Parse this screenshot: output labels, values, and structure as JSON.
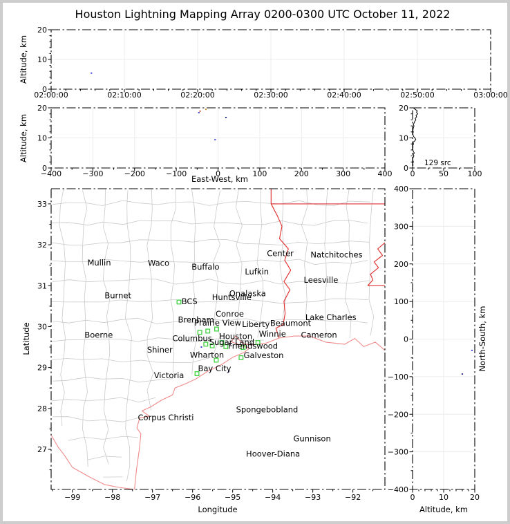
{
  "title": "Houston Lightning Mapping Array 0200-0300 UTC October 11, 2022",
  "colors": {
    "frame": "#000000",
    "grid": "#ececec",
    "county_line": "#c9c9c9",
    "state_border": "#e23030",
    "coastline": "#f08a8a",
    "station_marker": "#3fd33f",
    "city_label": "#1c1c1c",
    "city_highlight": "#f5a04a",
    "city_network": "#a03434",
    "platform_label": "#2828cc",
    "histogram_line": "#000000"
  },
  "chart_data": [
    {
      "type": "scatter",
      "panel": "time_altitude",
      "ylabel": "Altitude, km",
      "xticks": [
        "02:00:00",
        "02:10:00",
        "02:20:00",
        "02:30:00",
        "02:40:00",
        "02:50:00",
        "03:00:00"
      ],
      "yticks": [
        0,
        10,
        20
      ],
      "xlim": [
        "02:00:00",
        "03:00:00"
      ],
      "ylim": [
        0,
        20
      ],
      "points": [
        {
          "time": "02:05:30",
          "altitude_km": 5.4,
          "color": "#3a3ad6"
        }
      ]
    },
    {
      "type": "scatter",
      "panel": "eastwest_altitude",
      "xlabel": "East-West, km",
      "ylabel": "Altitude, km",
      "xticks": [
        -400,
        -300,
        -200,
        -100,
        0,
        100,
        200,
        300,
        400
      ],
      "yticks": [
        0,
        10,
        20
      ],
      "xlim": [
        -400,
        400
      ],
      "ylim": [
        0,
        20
      ],
      "points": [
        {
          "x_km": -46,
          "altitude_km": 18.4,
          "color": "#3a3ad6"
        },
        {
          "x_km": -43,
          "altitude_km": 18.9,
          "color": "#d05030"
        },
        {
          "x_km": -29,
          "altitude_km": 19.5,
          "color": "#d08a30"
        },
        {
          "x_km": 19,
          "altitude_km": 16.8,
          "color": "#28288c"
        },
        {
          "x_km": -7,
          "altitude_km": 9.4,
          "color": "#3a3ad6"
        }
      ]
    },
    {
      "type": "line",
      "panel": "altitude_source_histogram",
      "annotation": "129 src",
      "xticks": [
        0,
        50,
        100
      ],
      "yticks": [
        0,
        10,
        20
      ],
      "xlim": [
        0,
        100
      ],
      "ylim": [
        0,
        20
      ],
      "series": [
        {
          "name": "source count by altitude",
          "points_alt_count": [
            [
              0,
              0
            ],
            [
              0.5,
              0.2
            ],
            [
              1,
              0.9
            ],
            [
              1.5,
              0.3
            ],
            [
              2,
              1.3
            ],
            [
              2.5,
              0.5
            ],
            [
              3,
              0.2
            ],
            [
              3.5,
              1.0
            ],
            [
              4,
              2.2
            ],
            [
              4.5,
              1.0
            ],
            [
              5,
              2.9
            ],
            [
              5.5,
              1.2
            ],
            [
              6,
              0.6
            ],
            [
              6.5,
              0.3
            ],
            [
              7,
              0.8
            ],
            [
              7.5,
              0.4
            ],
            [
              8,
              1.5
            ],
            [
              8.5,
              0.7
            ],
            [
              9,
              3.6
            ],
            [
              9.5,
              5.2
            ],
            [
              10,
              3.8
            ],
            [
              10.5,
              1.6
            ],
            [
              11,
              0.8
            ],
            [
              11.5,
              0.5
            ],
            [
              12,
              1.2
            ],
            [
              12.5,
              0.6
            ],
            [
              13,
              0.9
            ],
            [
              13.5,
              1.5
            ],
            [
              14,
              2.3
            ],
            [
              14.5,
              1.1
            ],
            [
              15,
              2.7
            ],
            [
              15.5,
              3.5
            ],
            [
              16,
              5.3
            ],
            [
              16.5,
              4.3
            ],
            [
              17,
              6.6
            ],
            [
              17.5,
              5.6
            ],
            [
              18,
              8.3
            ],
            [
              18.5,
              6.3
            ],
            [
              19,
              7.5
            ],
            [
              19.5,
              4.3
            ],
            [
              20,
              1.2
            ]
          ]
        }
      ]
    },
    {
      "type": "scatter",
      "panel": "plan_view_map",
      "xlabel": "Longitude",
      "ylabel": "Latitude",
      "xticks": [
        -99,
        -98,
        -97,
        -96,
        -95,
        -94,
        -93,
        -92
      ],
      "yticks": [
        27,
        28,
        29,
        30,
        31,
        32,
        33
      ],
      "xlim": [
        -99.53,
        -91.2
      ],
      "ylim": [
        26.02,
        33.37
      ],
      "points": [
        {
          "lon": -95.78,
          "lat": 29.5,
          "color": "#3a3ad6"
        },
        {
          "lon": -95.1,
          "lat": 28.9,
          "color": "#28288c"
        }
      ]
    },
    {
      "type": "scatter",
      "panel": "northsouth_altitude",
      "xlabel": "Altitude, km",
      "ylabel": "North-South, km",
      "xticks": [
        0,
        10,
        20
      ],
      "yticks": [
        400,
        300,
        200,
        100,
        0,
        -100,
        -200,
        -300,
        -400
      ],
      "xlim": [
        0,
        20
      ],
      "ylim": [
        -400,
        400
      ],
      "points": [
        {
          "altitude_km": 19.1,
          "y_km": -30,
          "color": "#3a3ad6"
        },
        {
          "altitude_km": 16.0,
          "y_km": -93,
          "color": "#28288c"
        }
      ]
    }
  ],
  "map_data": {
    "region": {
      "lon_min": -99.53,
      "lon_max": -91.2,
      "lat_min": 26.02,
      "lat_max": 33.37
    },
    "cities": [
      {
        "name": "Mullin",
        "lon": -98.66,
        "lat": 31.56,
        "role": "highlight"
      },
      {
        "name": "Waco",
        "lon": -97.15,
        "lat": 31.55,
        "role": "default"
      },
      {
        "name": "Buffalo",
        "lon": -96.06,
        "lat": 31.46,
        "role": "default"
      },
      {
        "name": "Lufkin",
        "lon": -94.73,
        "lat": 31.34,
        "role": "default"
      },
      {
        "name": "Center",
        "lon": -94.18,
        "lat": 31.79,
        "role": "default"
      },
      {
        "name": "Natchitoches",
        "lon": -93.09,
        "lat": 31.76,
        "role": "default"
      },
      {
        "name": "Leesville",
        "lon": -93.26,
        "lat": 31.14,
        "role": "default"
      },
      {
        "name": "Burnet",
        "lon": -98.23,
        "lat": 30.76,
        "role": "default"
      },
      {
        "name": "Onalaska",
        "lon": -95.12,
        "lat": 30.81,
        "role": "default"
      },
      {
        "name": "Huntsville",
        "lon": -95.55,
        "lat": 30.72,
        "role": "default"
      },
      {
        "name": "BCS",
        "lon": -96.31,
        "lat": 30.62,
        "role": "network"
      },
      {
        "name": "Conroe",
        "lon": -95.46,
        "lat": 30.31,
        "role": "default"
      },
      {
        "name": "Brenham",
        "lon": -96.4,
        "lat": 30.17,
        "role": "default"
      },
      {
        "name": "Prairie View",
        "lon": -95.99,
        "lat": 30.09,
        "role": "default"
      },
      {
        "name": "Liberty",
        "lon": -94.8,
        "lat": 30.06,
        "role": "default"
      },
      {
        "name": "Beaumont",
        "lon": -94.1,
        "lat": 30.08,
        "role": "default"
      },
      {
        "name": "Lake Charles",
        "lon": -93.22,
        "lat": 30.23,
        "role": "default"
      },
      {
        "name": "Boerne",
        "lon": -98.73,
        "lat": 29.8,
        "role": "default"
      },
      {
        "name": "Columbus",
        "lon": -96.54,
        "lat": 29.71,
        "role": "default"
      },
      {
        "name": "Houston",
        "lon": -95.37,
        "lat": 29.76,
        "role": "highlight"
      },
      {
        "name": "Winnie",
        "lon": -94.38,
        "lat": 29.82,
        "role": "default"
      },
      {
        "name": "Cameron",
        "lon": -93.33,
        "lat": 29.8,
        "role": "default"
      },
      {
        "name": "Shiner",
        "lon": -97.17,
        "lat": 29.43,
        "role": "default"
      },
      {
        "name": "Sugar Land",
        "lon": -95.62,
        "lat": 29.62,
        "role": "default"
      },
      {
        "name": "Friendswood",
        "lon": -95.15,
        "lat": 29.53,
        "role": "default"
      },
      {
        "name": "Wharton",
        "lon": -96.1,
        "lat": 29.31,
        "role": "default"
      },
      {
        "name": "Galveston",
        "lon": -94.76,
        "lat": 29.3,
        "role": "default"
      },
      {
        "name": "Bay City",
        "lon": -95.9,
        "lat": 28.98,
        "role": "default"
      },
      {
        "name": "Victoria",
        "lon": -97.0,
        "lat": 28.81,
        "role": "default"
      },
      {
        "name": "Corpus Christi",
        "lon": -97.4,
        "lat": 27.78,
        "role": "default"
      },
      {
        "name": "Spongebobland",
        "lon": -94.95,
        "lat": 27.97,
        "role": "platform"
      },
      {
        "name": "Gunnison",
        "lon": -93.52,
        "lat": 27.26,
        "role": "platform"
      },
      {
        "name": "Hoover-Diana",
        "lon": -94.7,
        "lat": 26.89,
        "role": "platform"
      }
    ],
    "stations": [
      [
        -96.34,
        30.6
      ],
      [
        -95.82,
        29.86
      ],
      [
        -95.62,
        29.89
      ],
      [
        -95.4,
        29.94
      ],
      [
        -95.67,
        29.57
      ],
      [
        -95.51,
        29.53
      ],
      [
        -95.27,
        29.61
      ],
      [
        -95.17,
        29.51
      ],
      [
        -94.74,
        29.49
      ],
      [
        -94.37,
        29.61
      ],
      [
        -95.41,
        29.18
      ],
      [
        -94.79,
        29.24
      ],
      [
        -95.89,
        28.85
      ]
    ],
    "state_borders": [
      [
        [
          -94.04,
          33.37
        ],
        [
          -94.04,
          33.0
        ]
      ],
      [
        [
          -94.04,
          33.0
        ],
        [
          -91.2,
          33.0
        ]
      ],
      [
        [
          -94.04,
          33.0
        ],
        [
          -93.88,
          32.7
        ],
        [
          -93.77,
          32.45
        ],
        [
          -93.83,
          32.15
        ],
        [
          -93.61,
          31.9
        ],
        [
          -93.7,
          31.62
        ],
        [
          -93.55,
          31.38
        ],
        [
          -93.72,
          31.1
        ],
        [
          -93.57,
          30.9
        ],
        [
          -93.72,
          30.62
        ],
        [
          -93.69,
          30.32
        ],
        [
          -93.74,
          30.05
        ],
        [
          -93.92,
          29.96
        ],
        [
          -93.84,
          29.72
        ]
      ],
      [
        [
          -91.2,
          32.05
        ],
        [
          -91.38,
          31.9
        ],
        [
          -91.26,
          31.74
        ],
        [
          -91.47,
          31.58
        ],
        [
          -91.36,
          31.44
        ],
        [
          -91.56,
          31.28
        ],
        [
          -91.5,
          31.14
        ],
        [
          -91.63,
          31.0
        ]
      ],
      [
        [
          -91.63,
          31.0
        ],
        [
          -91.2,
          31.0
        ]
      ]
    ],
    "coastline": [
      [
        [
          -97.45,
          26.02
        ],
        [
          -97.4,
          26.5
        ],
        [
          -97.33,
          27.0
        ],
        [
          -97.29,
          27.38
        ],
        [
          -97.39,
          27.52
        ],
        [
          -97.32,
          27.77
        ],
        [
          -97.08,
          27.81
        ],
        [
          -97.26,
          27.94
        ],
        [
          -97.04,
          28.04
        ],
        [
          -96.78,
          28.2
        ],
        [
          -96.5,
          28.33
        ],
        [
          -96.44,
          28.5
        ],
        [
          -96.18,
          28.6
        ],
        [
          -95.92,
          28.72
        ],
        [
          -95.62,
          28.91
        ],
        [
          -95.28,
          29.07
        ],
        [
          -94.98,
          29.26
        ],
        [
          -94.73,
          29.36
        ],
        [
          -94.58,
          29.47
        ],
        [
          -95.04,
          29.63
        ],
        [
          -94.93,
          29.76
        ],
        [
          -94.73,
          29.58
        ],
        [
          -94.52,
          29.55
        ],
        [
          -94.15,
          29.6
        ],
        [
          -93.84,
          29.72
        ],
        [
          -93.46,
          29.77
        ],
        [
          -93.08,
          29.77
        ],
        [
          -92.68,
          29.62
        ],
        [
          -92.2,
          29.57
        ],
        [
          -91.95,
          29.71
        ],
        [
          -91.73,
          29.51
        ],
        [
          -91.44,
          29.62
        ],
        [
          -91.2,
          29.42
        ]
      ],
      [
        [
          -99.53,
          27.35
        ],
        [
          -99.36,
          27.06
        ],
        [
          -99.2,
          26.86
        ],
        [
          -99.0,
          26.56
        ],
        [
          -98.6,
          26.34
        ],
        [
          -98.2,
          26.14
        ],
        [
          -97.84,
          26.07
        ],
        [
          -97.45,
          26.02
        ]
      ]
    ]
  }
}
